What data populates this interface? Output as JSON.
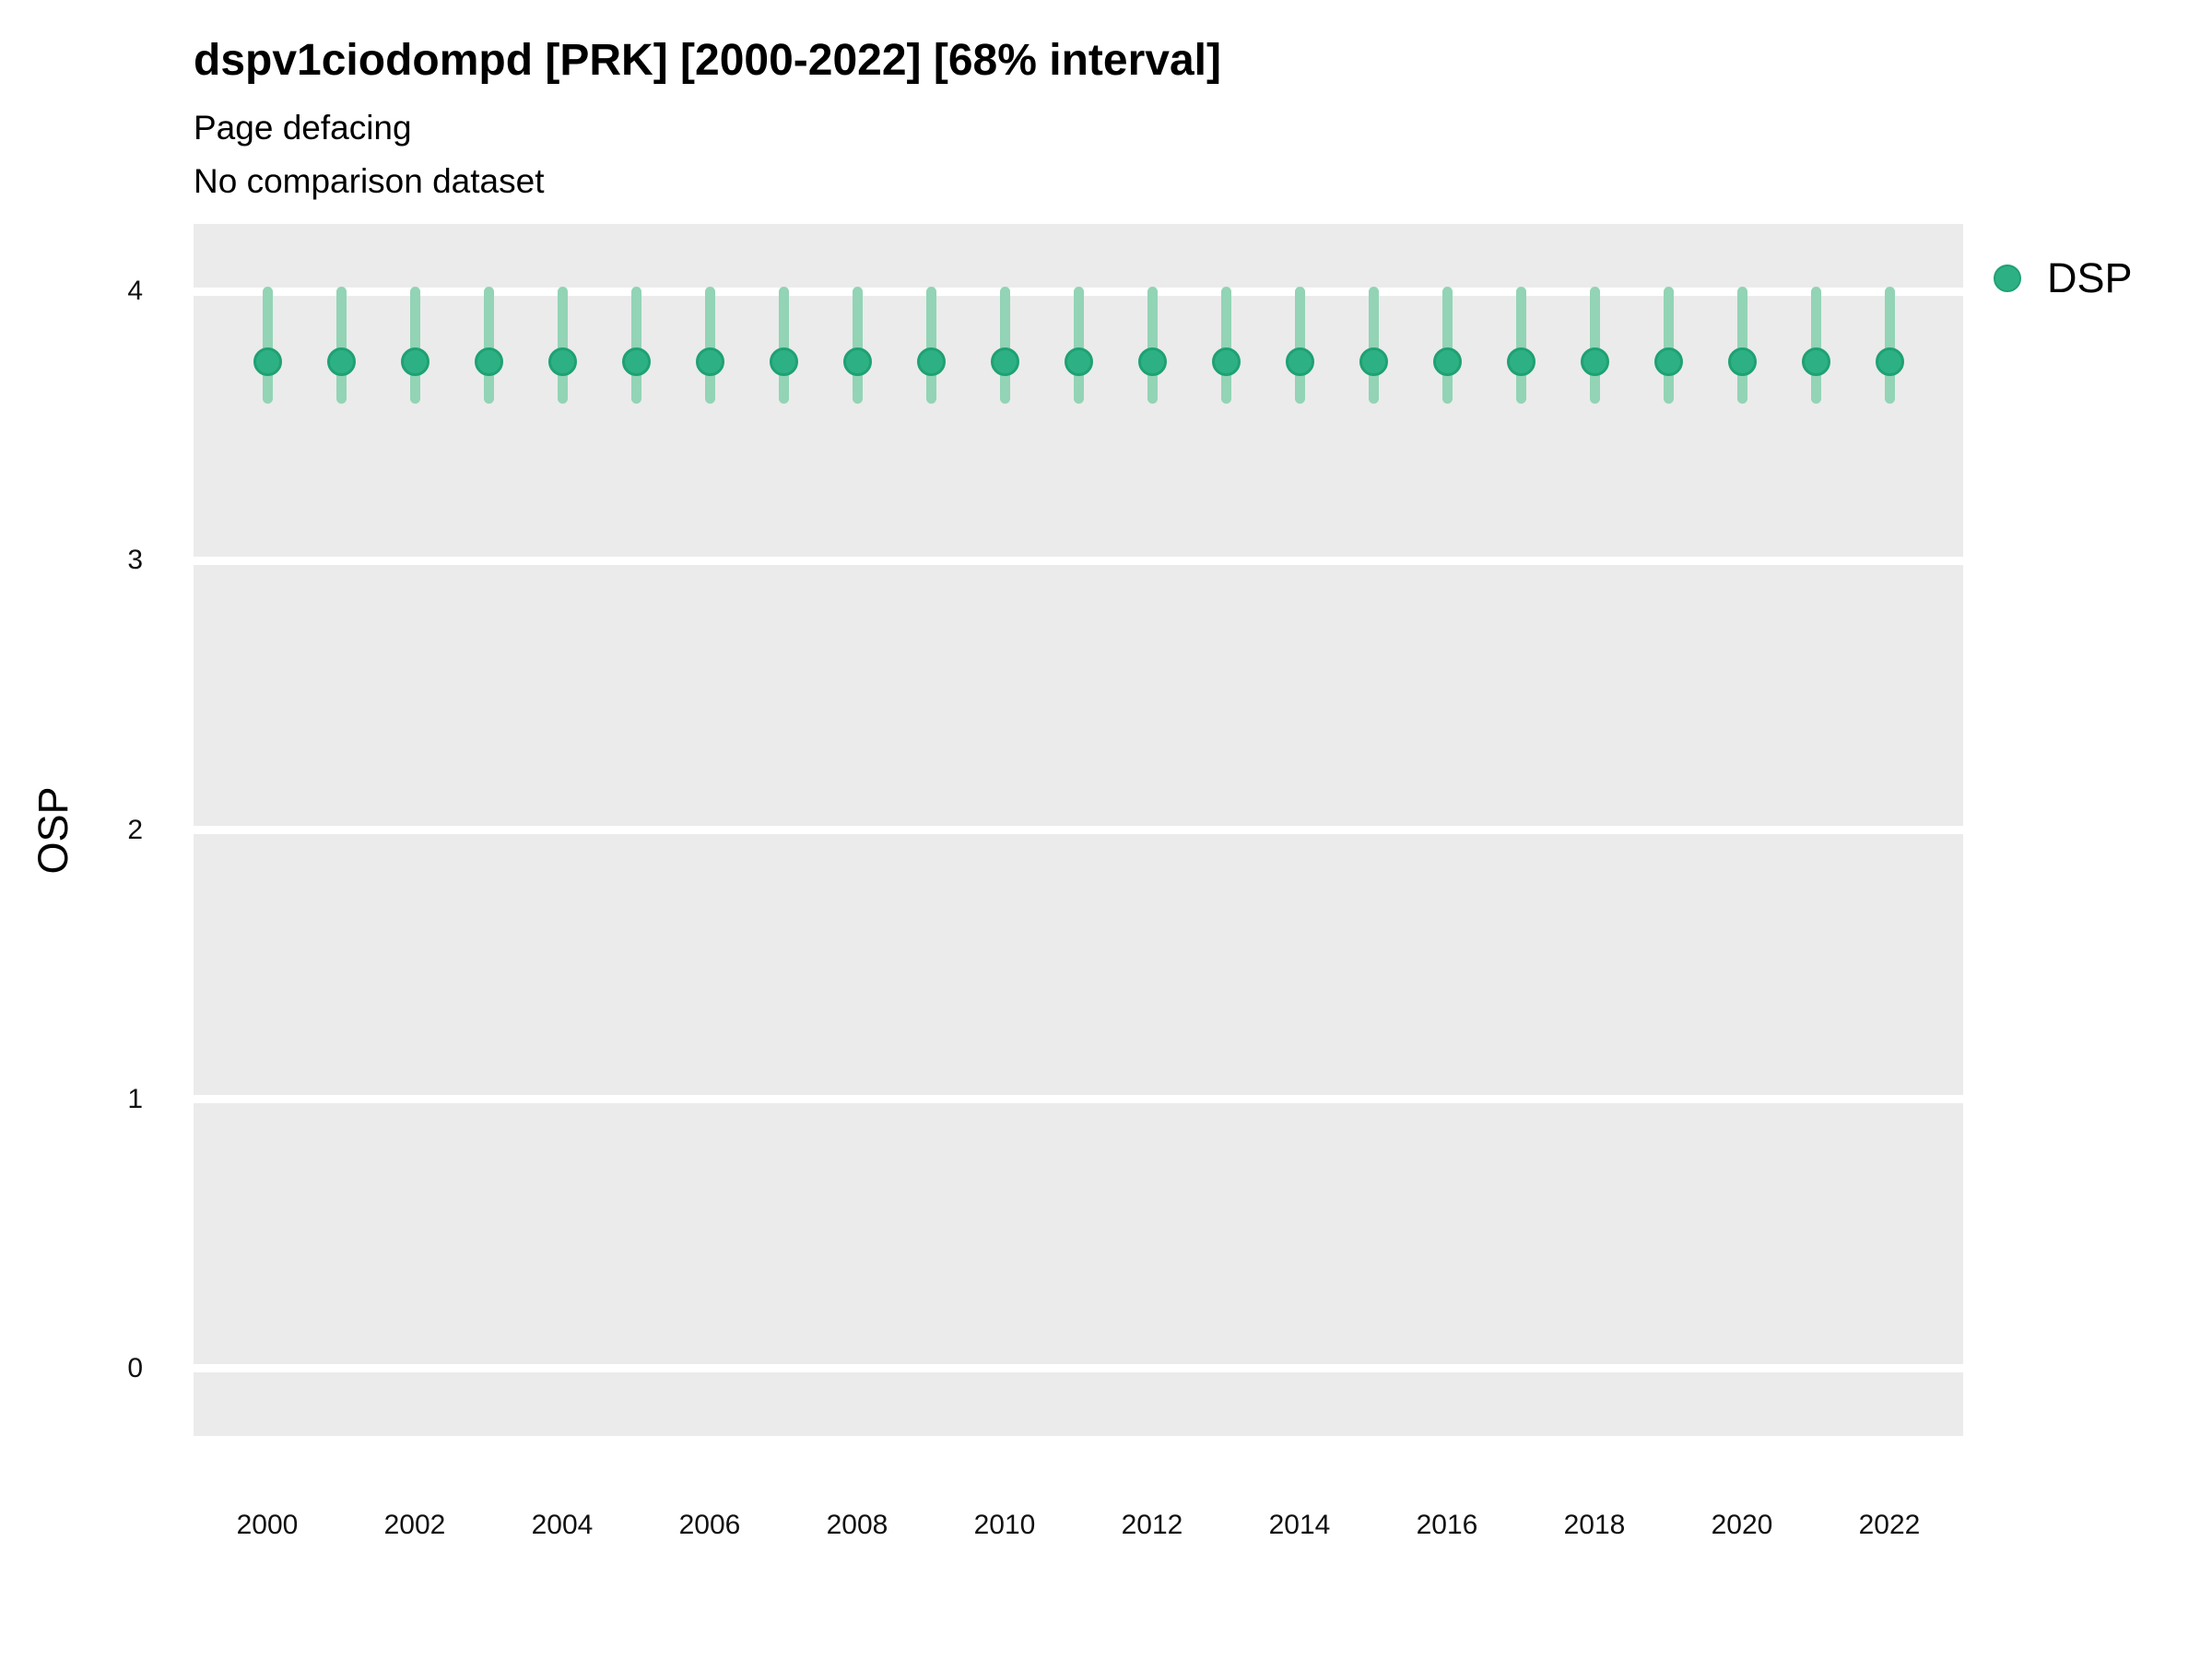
{
  "header": {
    "title": "dspv1ciodompd [PRK] [2000-2022] [68% interval]",
    "subtitle_line1": "Page defacing",
    "subtitle_line2": "No comparison dataset"
  },
  "axes": {
    "y_label": "OSP",
    "y_ticks": [
      4,
      3,
      2,
      1,
      0
    ],
    "x_ticks": [
      2000,
      2002,
      2004,
      2006,
      2008,
      2010,
      2012,
      2014,
      2016,
      2018,
      2020,
      2022
    ]
  },
  "legend": {
    "position": "right",
    "items": [
      {
        "label": "DSP",
        "color": "#2db184",
        "border_color": "#1fa173",
        "marker": "circle-icon"
      }
    ]
  },
  "colors": {
    "panel_bg": "#ebebeb",
    "grid": "#ffffff",
    "point_fill": "#2db184",
    "point_stroke": "#1fa173",
    "interval_bar": "#92d4b5",
    "text": "#000000"
  },
  "chart_data": {
    "type": "scatter",
    "title": "dspv1ciodompd [PRK] [2000-2022] [68% interval]",
    "subtitle": [
      "Page defacing",
      "No comparison dataset"
    ],
    "xlabel": "",
    "ylabel": "OSP",
    "interval_label": "68% interval",
    "legend_position": "right",
    "grid": "major-horizontal-only",
    "xlim": [
      1999,
      2023
    ],
    "ylim": [
      -0.25,
      4.25
    ],
    "series": [
      {
        "name": "DSP",
        "x": [
          2000,
          2001,
          2002,
          2003,
          2004,
          2005,
          2006,
          2007,
          2008,
          2009,
          2010,
          2011,
          2012,
          2013,
          2014,
          2015,
          2016,
          2017,
          2018,
          2019,
          2020,
          2021,
          2022
        ],
        "y": [
          3.74,
          3.74,
          3.74,
          3.74,
          3.74,
          3.74,
          3.74,
          3.74,
          3.74,
          3.74,
          3.74,
          3.74,
          3.74,
          3.74,
          3.74,
          3.74,
          3.74,
          3.74,
          3.74,
          3.74,
          3.74,
          3.74,
          3.74
        ],
        "interval_low": [
          3.6,
          3.6,
          3.6,
          3.6,
          3.6,
          3.6,
          3.6,
          3.6,
          3.6,
          3.6,
          3.6,
          3.6,
          3.6,
          3.6,
          3.6,
          3.6,
          3.6,
          3.6,
          3.6,
          3.6,
          3.6,
          3.6,
          3.6
        ],
        "interval_high": [
          4.0,
          4.0,
          4.0,
          4.0,
          4.0,
          4.0,
          4.0,
          4.0,
          4.0,
          4.0,
          4.0,
          4.0,
          4.0,
          4.0,
          4.0,
          4.0,
          4.0,
          4.0,
          4.0,
          4.0,
          4.0,
          4.0,
          4.0
        ]
      }
    ]
  }
}
